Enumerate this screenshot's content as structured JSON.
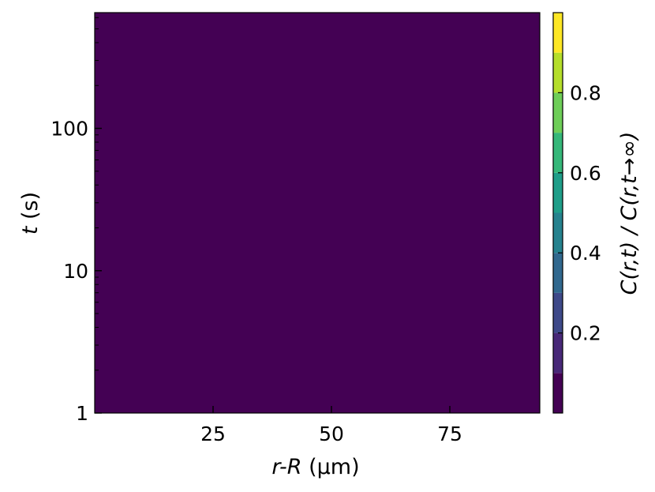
{
  "chart_data": {
    "type": "heatmap",
    "subtype": "filled-contour",
    "colormap": "viridis",
    "xlabel_var": "r-R",
    "xlabel_unit": " (µm)",
    "ylabel_var": "t",
    "ylabel_unit": " (s)",
    "colorbar_label": "C(r,t) / C(r,t→∞)",
    "x_range": [
      0,
      94
    ],
    "y_range": [
      1,
      650
    ],
    "y_scale": "log",
    "x_ticks": [
      25,
      50,
      75
    ],
    "x_tick_labels": [
      "25",
      "50",
      "75"
    ],
    "y_ticks": [
      1,
      10,
      100
    ],
    "y_tick_labels": [
      "1",
      "10",
      "100"
    ],
    "colorbar_range": [
      0,
      1
    ],
    "colorbar_ticks": [
      0.2,
      0.4,
      0.6,
      0.8
    ],
    "colorbar_tick_labels": [
      "0.2",
      "0.4",
      "0.6",
      "0.8"
    ],
    "contour_levels": [
      0.0,
      0.1,
      0.2,
      0.3,
      0.4,
      0.5,
      0.6,
      0.7,
      0.8,
      0.9,
      1.0
    ],
    "level_colors": [
      "#440154",
      "#482878",
      "#3e4989",
      "#31688e",
      "#26828e",
      "#1f9e89",
      "#35b779",
      "#6ece58",
      "#b5de2b",
      "#fde725"
    ],
    "highlight_contours": [
      {
        "level": 0.9,
        "color": "#000000"
      },
      {
        "level": 0.1,
        "color": "#ffffff"
      }
    ],
    "grid": false
  }
}
